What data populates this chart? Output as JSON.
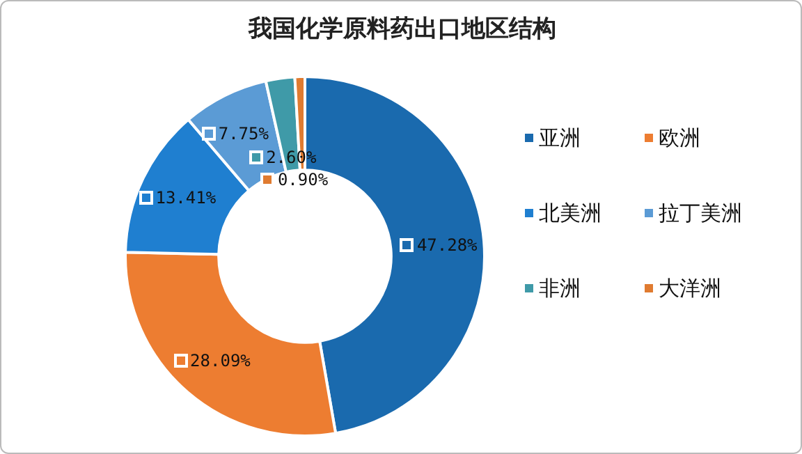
{
  "chart_data": {
    "type": "donut",
    "title": "我国化学原料药出口地区结构",
    "categories": [
      "亚洲",
      "欧洲",
      "北美洲",
      "拉丁美洲",
      "非洲",
      "大洋洲"
    ],
    "values": [
      47.28,
      28.09,
      13.41,
      7.75,
      2.6,
      0.9
    ],
    "colors": [
      "#1a6aae",
      "#ed7d31",
      "#1f7fd0",
      "#5b9bd5",
      "#3f9aa8",
      "#e07b30"
    ],
    "value_labels": [
      "47.28%",
      "28.09%",
      "13.41%",
      "7.75%",
      "2.60%",
      "0.90%"
    ],
    "legend": "right"
  }
}
